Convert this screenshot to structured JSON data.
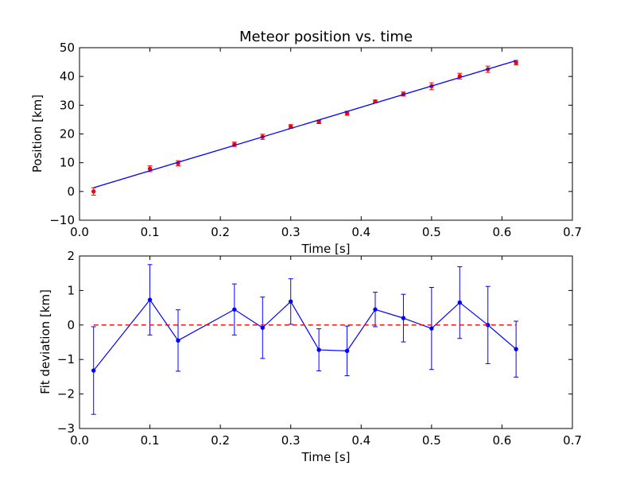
{
  "chart_data": [
    {
      "type": "scatter",
      "title": "Meteor position vs. time",
      "xlabel": "Time [s]",
      "ylabel": "Position [km]",
      "xlim": [
        0.0,
        0.7
      ],
      "ylim": [
        -10,
        50
      ],
      "xticks": [
        "0.0",
        "0.1",
        "0.2",
        "0.3",
        "0.4",
        "0.5",
        "0.6",
        "0.7"
      ],
      "yticks": [
        "−10",
        "0",
        "10",
        "20",
        "30",
        "40",
        "50"
      ],
      "grid": false,
      "colors": {
        "points": "#ff0000",
        "fit": "#0000ff"
      },
      "series": [
        {
          "kind": "errorbar-points",
          "x": [
            0.02,
            0.1,
            0.14,
            0.22,
            0.26,
            0.3,
            0.34,
            0.38,
            0.42,
            0.46,
            0.5,
            0.54,
            0.58,
            0.62
          ],
          "y": [
            0.0,
            7.9,
            9.8,
            16.4,
            19.0,
            22.6,
            24.2,
            27.2,
            31.3,
            33.9,
            36.6,
            40.1,
            42.5,
            44.8
          ],
          "yerr": [
            1.3,
            1.0,
            0.9,
            0.75,
            0.9,
            0.65,
            0.6,
            0.7,
            0.5,
            0.7,
            1.2,
            1.0,
            1.1,
            0.8
          ]
        },
        {
          "kind": "fit-line",
          "x": [
            0.02,
            0.62
          ],
          "y": [
            1.3,
            45.5
          ]
        }
      ]
    },
    {
      "type": "line",
      "title": "",
      "xlabel": "Time [s]",
      "ylabel": "Fit deviation [km]",
      "xlim": [
        0.0,
        0.7
      ],
      "ylim": [
        -3,
        2
      ],
      "xticks": [
        "0.0",
        "0.1",
        "0.2",
        "0.3",
        "0.4",
        "0.5",
        "0.6",
        "0.7"
      ],
      "yticks": [
        "−3",
        "−2",
        "−1",
        "0",
        "1",
        "2"
      ],
      "grid": false,
      "colors": {
        "deviation": "#0000ff",
        "zero": "#ff0000"
      },
      "series": [
        {
          "kind": "errorbar-line",
          "x": [
            0.02,
            0.1,
            0.14,
            0.22,
            0.26,
            0.3,
            0.34,
            0.38,
            0.42,
            0.46,
            0.5,
            0.54,
            0.58,
            0.62
          ],
          "y": [
            -1.32,
            0.73,
            -0.45,
            0.45,
            -0.08,
            0.68,
            -0.72,
            -0.75,
            0.45,
            0.2,
            -0.1,
            0.65,
            0.0,
            -0.7
          ],
          "yerr": [
            1.27,
            1.02,
            0.89,
            0.74,
            0.89,
            0.66,
            0.61,
            0.72,
            0.5,
            0.69,
            1.19,
            1.04,
            1.12,
            0.81
          ]
        },
        {
          "kind": "zero-line",
          "x": [
            0.02,
            0.62
          ],
          "y": [
            0,
            0
          ]
        }
      ]
    }
  ]
}
